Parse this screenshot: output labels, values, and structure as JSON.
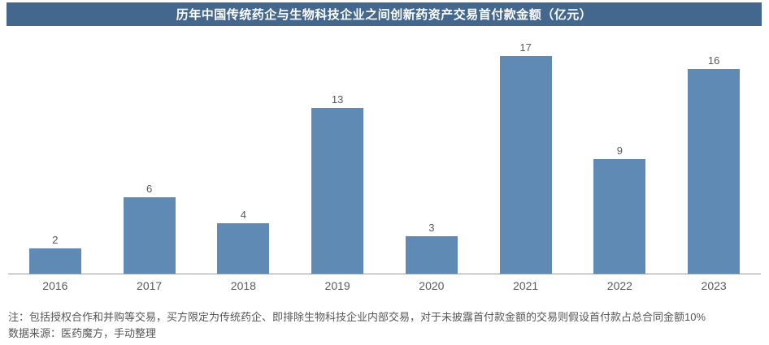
{
  "title": "历年中国传统药企与生物科技企业之间创新药资产交易首付款金额（亿元）",
  "chart_data": {
    "type": "bar",
    "categories": [
      "2016",
      "2017",
      "2018",
      "2019",
      "2020",
      "2021",
      "2022",
      "2023"
    ],
    "values": [
      2,
      6,
      4,
      13,
      3,
      17,
      9,
      16
    ],
    "title": "历年中国传统药企与生物科技企业之间创新药资产交易首付款金额（亿元）",
    "xlabel": "",
    "ylabel": "",
    "ylim": [
      0,
      18
    ],
    "grid": false,
    "legend": false,
    "data_labels": true,
    "bar_color": "#5E8AB4"
  },
  "colors": {
    "header_bg": "#44678D",
    "header_text": "#FFFFFF",
    "bar": "#5E8AB4",
    "axis_line": "#9A9A9A",
    "tick_text": "#595959",
    "note_text": "#565656"
  },
  "notes": {
    "line1": "注：包括授权合作和并购等交易，买方限定为传统药企、即排除生物科技企业内部交易，对于未披露首付款金额的交易则假设首付款占总合同金额10%",
    "line2": "数据来源：医药魔方，手动整理"
  }
}
